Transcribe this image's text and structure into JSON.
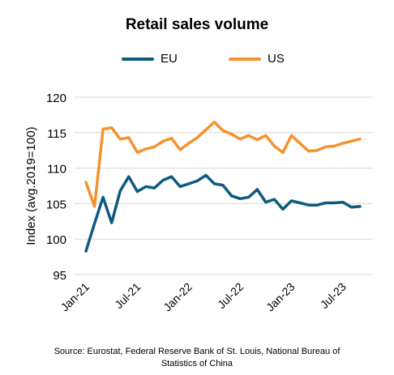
{
  "chart_data": {
    "type": "line",
    "title": "Retail sales volume",
    "ylabel": "Index (avg.2019=100)",
    "xlabel": "",
    "ylim": [
      95,
      120
    ],
    "yticks": [
      95,
      100,
      105,
      110,
      115,
      120
    ],
    "grid": true,
    "legend_position": "top",
    "x": [
      "Jan-21",
      "Feb-21",
      "Mar-21",
      "Apr-21",
      "May-21",
      "Jun-21",
      "Jul-21",
      "Aug-21",
      "Sep-21",
      "Oct-21",
      "Nov-21",
      "Dec-21",
      "Jan-22",
      "Feb-22",
      "Mar-22",
      "Apr-22",
      "May-22",
      "Jun-22",
      "Jul-22",
      "Aug-22",
      "Sep-22",
      "Oct-22",
      "Nov-22",
      "Dec-22",
      "Jan-23",
      "Feb-23",
      "Mar-23",
      "Apr-23",
      "May-23",
      "Jun-23",
      "Jul-23",
      "Aug-23",
      "Sep-23"
    ],
    "xtick_labels": [
      "Jan-21",
      "Jul-21",
      "Jan-22",
      "Jul-22",
      "Jan-23",
      "Jul-23"
    ],
    "series": [
      {
        "name": "EU",
        "color": "#0e5a7e",
        "values": [
          98.3,
          102.2,
          105.9,
          102.3,
          106.8,
          108.8,
          106.7,
          107.4,
          107.2,
          108.3,
          108.8,
          107.4,
          107.8,
          108.2,
          109.0,
          107.8,
          107.6,
          106.1,
          105.7,
          105.9,
          107.0,
          105.2,
          105.6,
          104.2,
          105.4,
          105.1,
          104.8,
          104.8,
          105.1,
          105.1,
          105.2,
          104.5,
          104.6
        ]
      },
      {
        "name": "US",
        "color": "#f5922f",
        "values": [
          108.0,
          104.6,
          115.5,
          115.7,
          114.1,
          114.3,
          112.2,
          112.7,
          113.0,
          113.8,
          114.2,
          112.6,
          113.5,
          114.3,
          115.4,
          116.5,
          115.3,
          114.8,
          114.1,
          114.6,
          114.0,
          114.6,
          113.1,
          112.2,
          114.6,
          113.5,
          112.4,
          112.5,
          113.0,
          113.1,
          113.5,
          113.8,
          114.1
        ]
      }
    ]
  },
  "footer": {
    "source_line1": "Source: Eurostat, Federal Reserve Bank of St. Louis, National Bureau of",
    "source_line2": "Statistics of China"
  }
}
